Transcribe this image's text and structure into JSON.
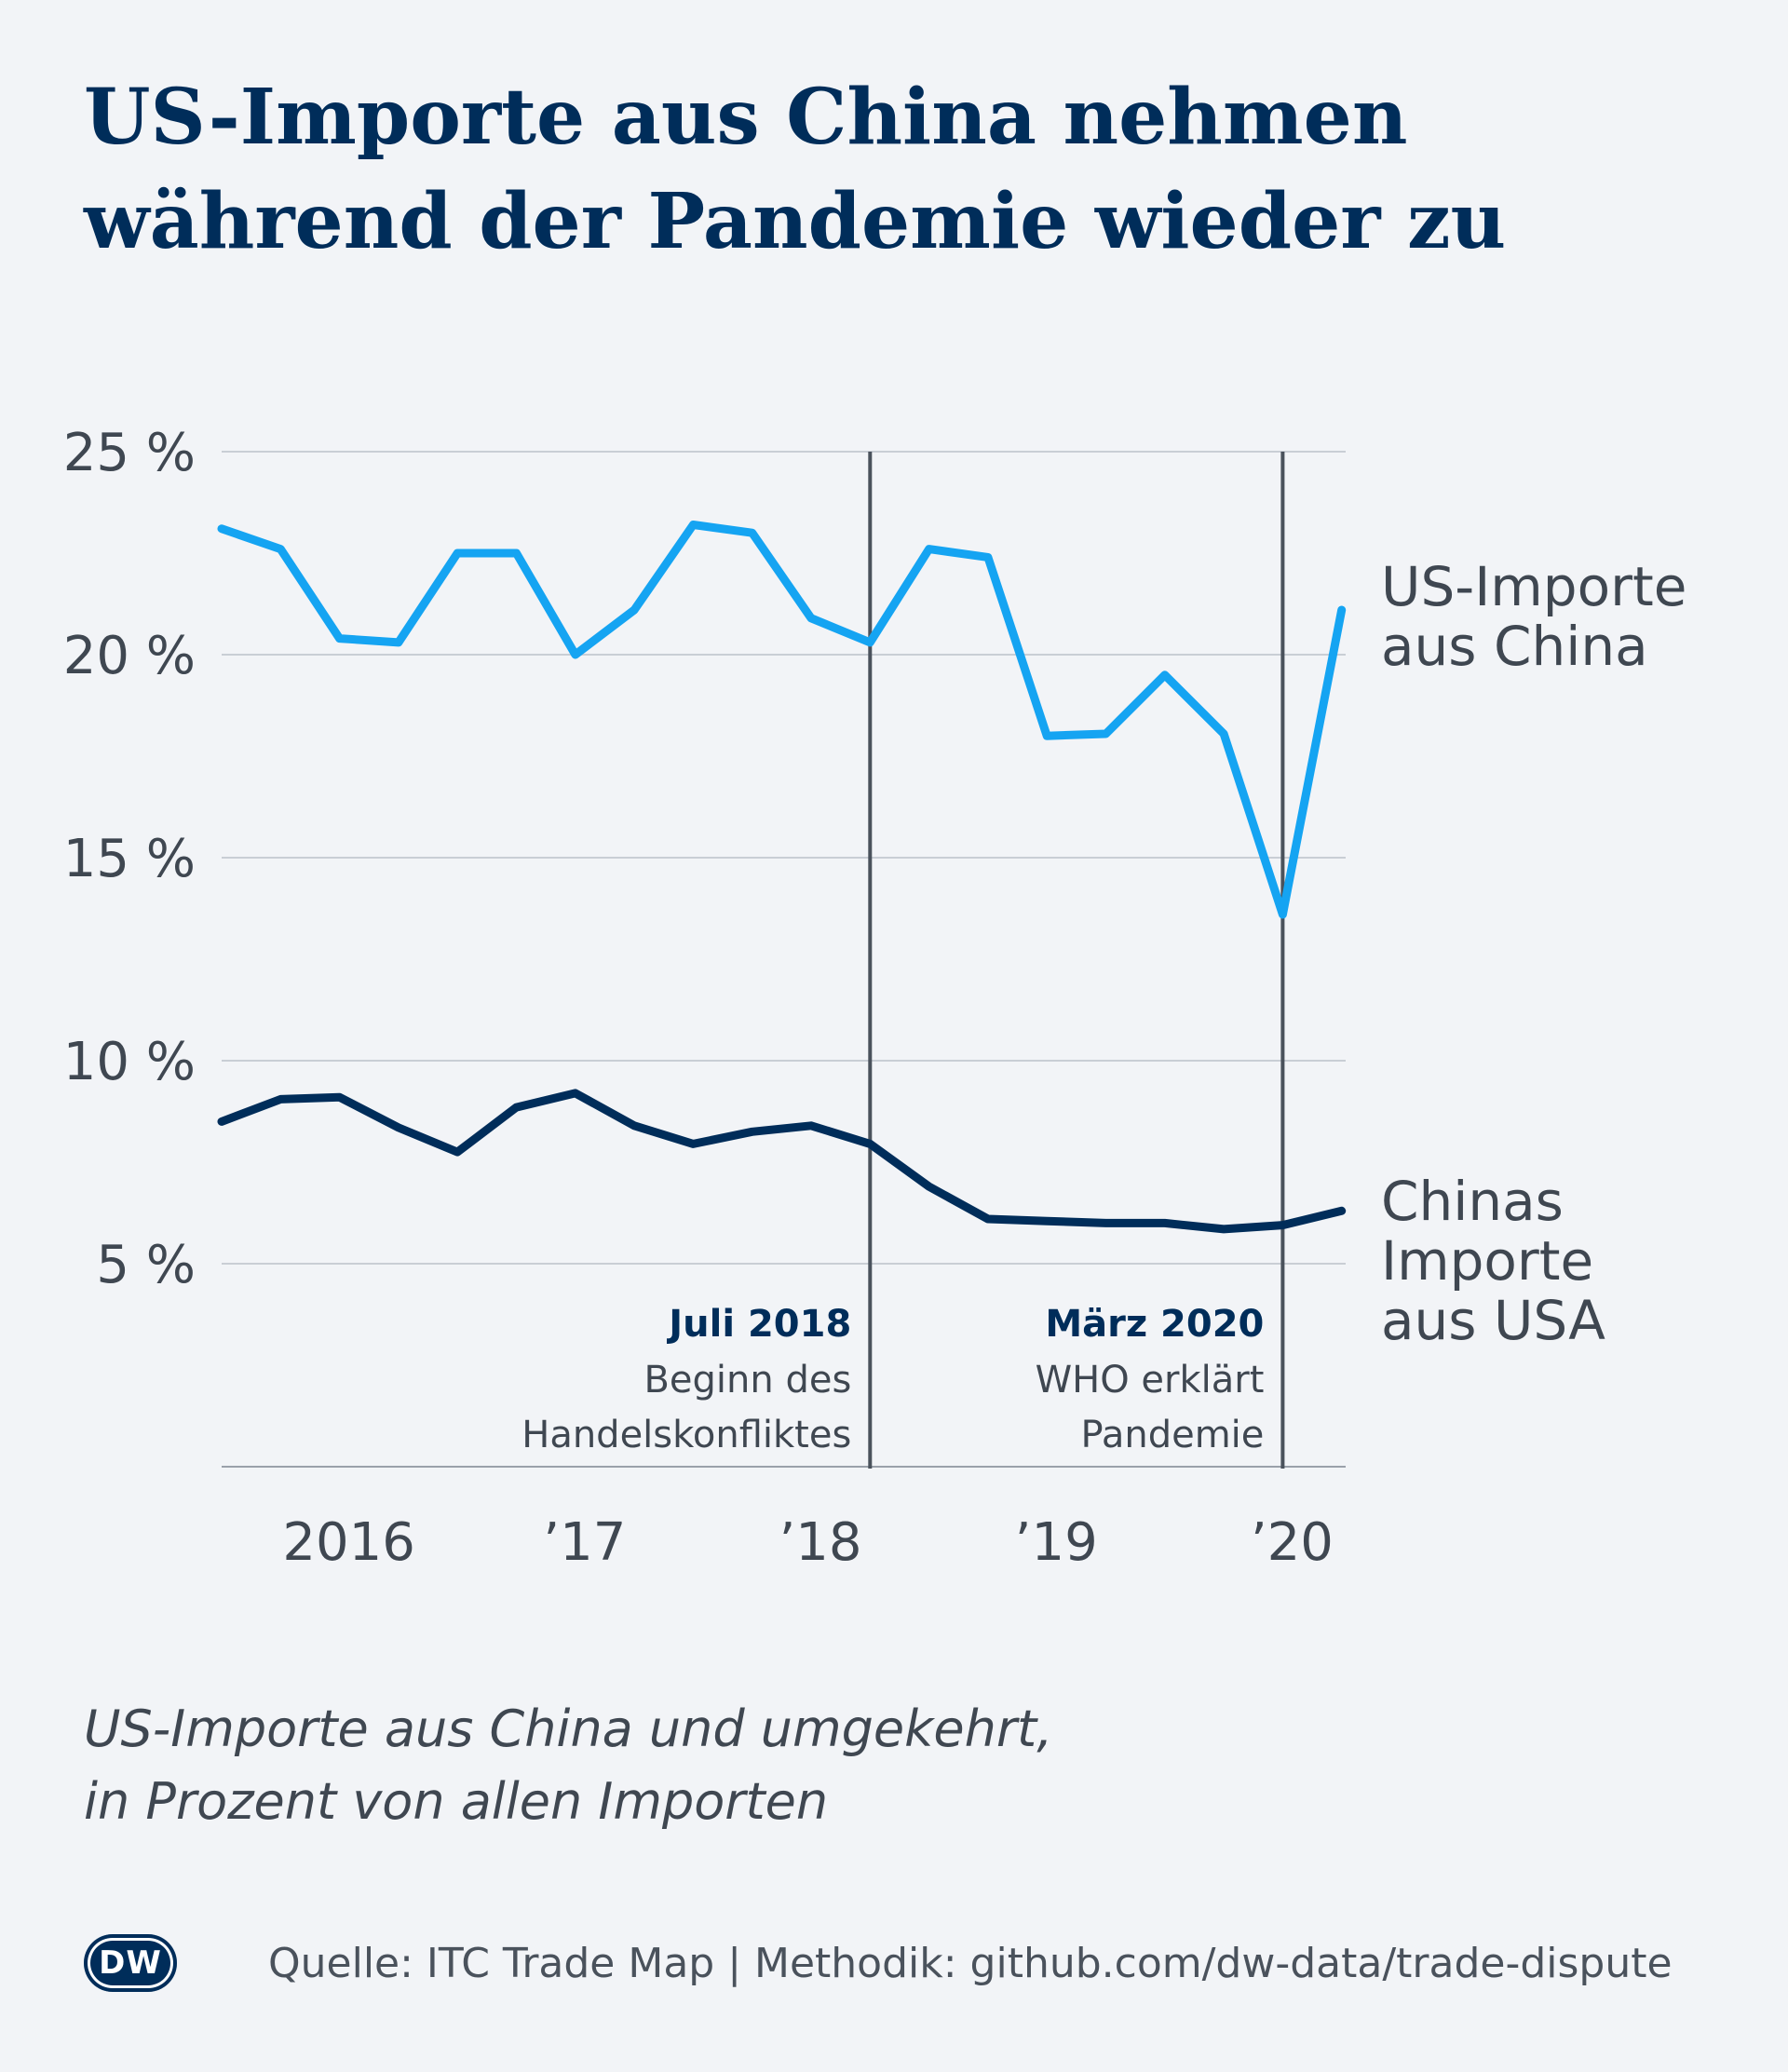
{
  "header": {
    "title_line1": "US-Importe aus China nehmen",
    "title_line2": "während der Pandemie wieder zu"
  },
  "subtitle": {
    "line1": "US-Importe aus China und umgekehrt,",
    "line2": "in Prozent von allen Importen"
  },
  "footer": {
    "logo_text": "DW",
    "source": "Quelle: ITC Trade Map | Methodik: github.com/dw-data/trade-dispute"
  },
  "colors": {
    "background": "#f2f4f7",
    "title": "#002d5a",
    "series_us": "#15a4f2",
    "series_china": "#002d5a",
    "grid": "#c9ced5",
    "marker_line": "#4a525c"
  },
  "chart_data": {
    "type": "line",
    "title": "",
    "xlabel": "",
    "ylabel": "",
    "ylim": [
      0,
      25
    ],
    "yticks": [
      5,
      10,
      15,
      20,
      25
    ],
    "ytick_labels": [
      "5 %",
      "10 %",
      "15 %",
      "20 %",
      "25 %"
    ],
    "x_quarters": [
      "2015-Q4",
      "2016-Q1",
      "2016-Q2",
      "2016-Q3",
      "2016-Q4",
      "2017-Q1",
      "2017-Q2",
      "2017-Q3",
      "2017-Q4",
      "2018-Q1",
      "2018-Q2",
      "2018-Q3",
      "2018-Q4",
      "2019-Q1",
      "2019-Q2",
      "2019-Q3",
      "2019-Q4",
      "2020-Q1",
      "2020-Q2",
      "2020-Q3"
    ],
    "xtick_labels": [
      {
        "label": "2016",
        "quarter": "2016-Q2"
      },
      {
        "label": "’17",
        "quarter": "2017-Q2"
      },
      {
        "label": "’18",
        "quarter": "2018-Q2"
      },
      {
        "label": "’19",
        "quarter": "2019-Q2"
      },
      {
        "label": "’20",
        "quarter": "2020-Q2"
      }
    ],
    "grid": true,
    "series": [
      {
        "name": "US-Importe aus China",
        "label_lines": [
          "US-Importe",
          "aus China"
        ],
        "values": [
          23.1,
          22.6,
          20.4,
          20.3,
          22.5,
          22.5,
          20.0,
          21.1,
          23.2,
          23.0,
          20.9,
          20.3,
          22.6,
          22.4,
          18.0,
          18.05,
          19.5,
          18.05,
          13.6,
          21.1
        ]
      },
      {
        "name": "Chinas Importe aus USA",
        "label_lines": [
          "Chinas",
          "Importe",
          "aus USA"
        ],
        "values": [
          8.5,
          9.05,
          9.1,
          8.35,
          7.75,
          8.85,
          9.2,
          8.4,
          7.95,
          8.25,
          8.4,
          7.95,
          6.9,
          6.1,
          6.05,
          6.0,
          6.0,
          5.85,
          5.95,
          6.3
        ]
      }
    ],
    "annotations": [
      {
        "quarter": "2018-Q3",
        "title": "Juli 2018",
        "lines": [
          "Beginn des",
          "Handelskonfliktes"
        ]
      },
      {
        "quarter": "2020-Q2",
        "title": "März 2020",
        "lines": [
          "WHO erklärt",
          "Pandemie"
        ]
      }
    ]
  }
}
